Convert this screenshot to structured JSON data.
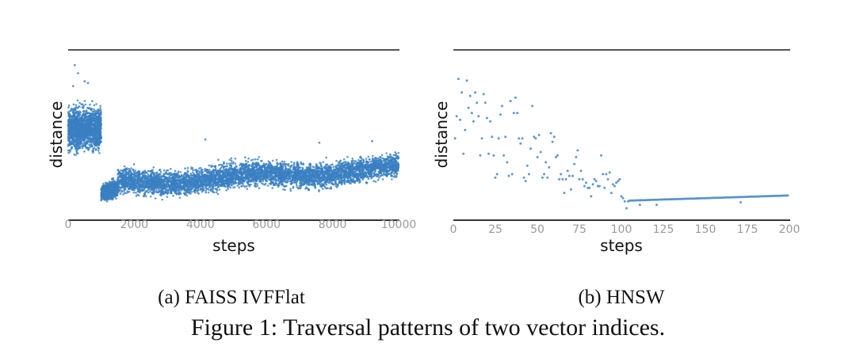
{
  "figure_caption": "Figure 1: Traversal patterns of two vector indices.",
  "chart_data": [
    {
      "type": "scatter",
      "subcaption": "(a) FAISS IVFFlat",
      "xlabel": "steps",
      "ylabel": "distance",
      "xlim": [
        0,
        10000
      ],
      "ylim": [
        0,
        1
      ],
      "xticks": [
        "0",
        "2000",
        "4000",
        "6000",
        "8000",
        "10000"
      ],
      "xtick_values": [
        0,
        2000,
        4000,
        6000,
        8000,
        10000
      ],
      "grid": false,
      "color": "#3a80c2",
      "note": "y in normalized units (no y ticks shown)",
      "distribution": [
        {
          "x_from": 0,
          "x_to": 1000,
          "count": 1600,
          "center_start": 0.53,
          "center_end": 0.52,
          "spread": 0.2
        },
        {
          "x_from": 1000,
          "x_to": 1500,
          "count": 700,
          "center_start": 0.12,
          "center_end": 0.15,
          "spread": 0.08
        },
        {
          "x_from": 1500,
          "x_to": 10000,
          "count": 5200,
          "center_start": 0.2,
          "center_end": 0.29,
          "spread": 0.12
        }
      ],
      "outliers": [
        [
          200,
          0.93
        ],
        [
          300,
          0.88
        ],
        [
          500,
          0.83
        ],
        [
          150,
          0.8
        ],
        [
          600,
          0.82
        ],
        [
          4150,
          0.47
        ],
        [
          7600,
          0.45
        ],
        [
          9200,
          0.46
        ]
      ]
    },
    {
      "type": "scatter",
      "subcaption": "(b) HNSW",
      "xlabel": "steps",
      "ylabel": "distance",
      "xlim": [
        0,
        200
      ],
      "ylim": [
        0,
        1
      ],
      "xticks": [
        "0",
        "25",
        "50",
        "75",
        "100",
        "125",
        "150",
        "175",
        "200"
      ],
      "xtick_values": [
        0,
        25,
        50,
        75,
        100,
        125,
        150,
        175,
        200
      ],
      "grid": false,
      "color": "#3a80c2",
      "note": "y in normalized units (no y ticks shown)",
      "points_y": [
        0.48,
        0.61,
        0.83,
        0.59,
        0.75,
        0.39,
        0.53,
        0.82,
        0.66,
        0.73,
        0.63,
        0.58,
        0.75,
        0.69,
        0.61,
        0.38,
        0.48,
        0.74,
        0.69,
        0.6,
        0.39,
        0.58,
        0.49,
        0.38,
        0.25,
        0.27,
        0.48,
        0.62,
        0.67,
        0.38,
        0.49,
        0.34,
        0.26,
        0.7,
        0.27,
        0.63,
        0.72,
        0.63,
        0.48,
        0.45,
        0.48,
        0.25,
        0.23,
        0.32,
        0.27,
        0.42,
        0.67,
        0.49,
        0.48,
        0.37,
        0.5,
        0.4,
        0.25,
        0.27,
        0.34,
        0.25,
        0.31,
        0.51,
        0.46,
        0.49,
        0.37,
        0.38,
        0.24,
        0.27,
        0.24,
        0.16,
        0.24,
        0.29,
        0.26,
        0.18,
        0.26,
        0.33,
        0.37,
        0.41,
        0.24,
        0.29,
        0.24,
        0.2,
        0.22,
        0.19,
        0.19,
        0.14,
        0.21,
        0.24,
        0.23,
        0.2,
        0.2,
        0.38,
        0.27,
        0.19,
        0.27,
        0.24,
        0.28,
        0.16,
        0.21,
        0.2,
        0.22,
        0.23,
        0.24,
        0.14,
        0.13,
        0.11,
        0.07,
        0.11
      ],
      "points_start_step": 1,
      "tail": {
        "from": 105,
        "to": 199,
        "start": 0.115,
        "end": 0.145
      },
      "tail_outliers": [
        [
          111,
          0.09
        ],
        [
          121,
          0.09
        ],
        [
          171,
          0.105
        ]
      ]
    }
  ]
}
